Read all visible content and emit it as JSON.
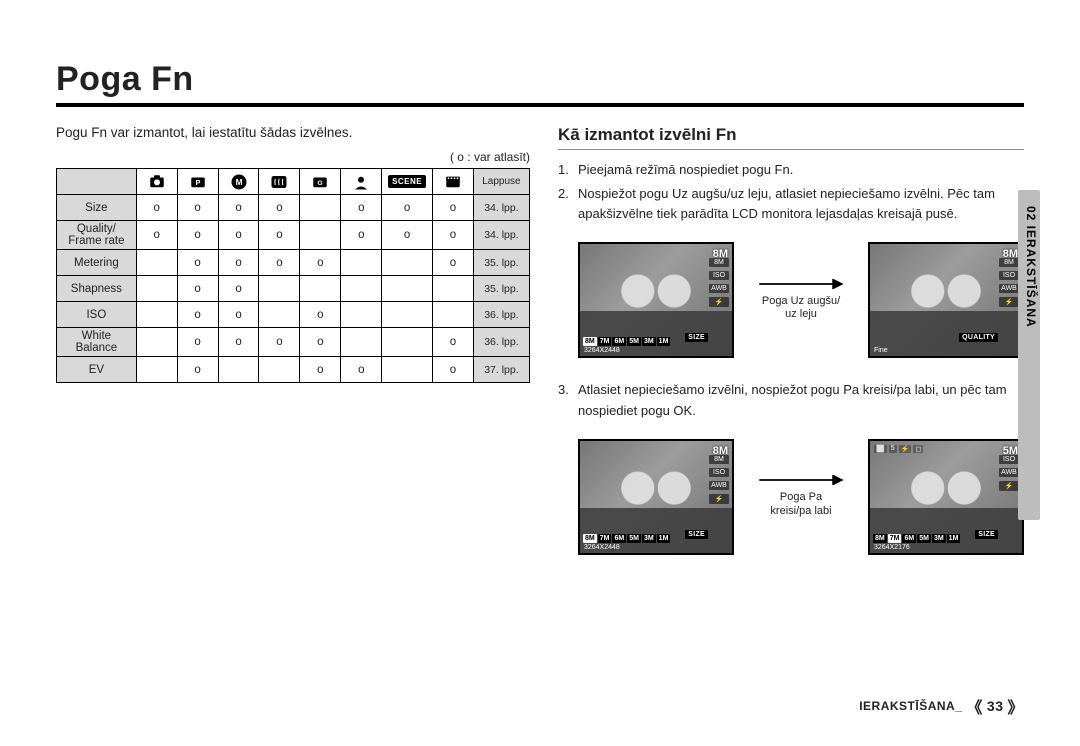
{
  "title": "Poga Fn",
  "left": {
    "intro": "Pogu Fn var izmantot, lai iestatītu šādas izvēlnes.",
    "legend": "( o : var atlasīt)",
    "head_last": "Lappuse",
    "scene_label": "SCENE",
    "rows": [
      {
        "label": "Size",
        "c": [
          "o",
          "o",
          "o",
          "o",
          "",
          "o",
          "o",
          "o"
        ],
        "page": "34. lpp."
      },
      {
        "label": "Quality/\nFrame rate",
        "c": [
          "o",
          "o",
          "o",
          "o",
          "",
          "o",
          "o",
          "o"
        ],
        "page": "34. lpp."
      },
      {
        "label": "Metering",
        "c": [
          "",
          "o",
          "o",
          "o",
          "o",
          "",
          "",
          "o"
        ],
        "page": "35. lpp."
      },
      {
        "label": "Shapness",
        "c": [
          "",
          "o",
          "o",
          "",
          "",
          "",
          "",
          ""
        ],
        "page": "35. lpp."
      },
      {
        "label": "ISO",
        "c": [
          "",
          "o",
          "o",
          "",
          "o",
          "",
          "",
          ""
        ],
        "page": "36. lpp."
      },
      {
        "label": "White\nBalance",
        "c": [
          "",
          "o",
          "o",
          "o",
          "o",
          "",
          "",
          "o"
        ],
        "page": "36. lpp."
      },
      {
        "label": "EV",
        "c": [
          "",
          "o",
          "",
          "",
          "o",
          "o",
          "",
          "o"
        ],
        "page": "37. lpp."
      }
    ]
  },
  "right": {
    "subhead": "Kā izmantot izvēlni Fn",
    "steps": [
      "Pieejamā režīmā nospiediet pogu Fn.",
      "Nospiežot pogu Uz augšu/uz leju, atlasiet nepieciešamo izvēlni. Pēc tam apakšizvēlne tiek parādīta LCD monitora lejasdaļas kreisajā pusē.",
      "Atlasiet nepieciešamo izvēlni, nospiežot pogu Pa kreisi/pa labi, un pēc tam nospiediet pogu OK."
    ],
    "arrow1": "Poga Uz augšu/\nuz leju",
    "arrow2": "Poga Pa\nkreisi/pa labi",
    "shot1": {
      "badge": "SIZE",
      "sub": "3264X2448",
      "sizes": [
        "8M",
        "7M",
        "6M",
        "5M",
        "3M",
        "1M"
      ],
      "right": [
        "8M",
        "ISO",
        "AWB",
        "⚡"
      ],
      "corner": "8M"
    },
    "shot2": {
      "badge": "QUALITY",
      "sub": "Fine",
      "right": [
        "8M",
        "ISO",
        "AWB",
        "⚡"
      ],
      "corner": "8M"
    },
    "shot3": {
      "badge": "SIZE",
      "sub": "3264X2448",
      "sizes": [
        "8M",
        "7M",
        "6M",
        "5M",
        "3M",
        "1M"
      ],
      "right": [
        "8M",
        "ISO",
        "AWB",
        "⚡"
      ],
      "corner": "8M"
    },
    "shot4": {
      "badge": "SIZE",
      "sub": "3264X2176",
      "sizes": [
        "8M",
        "7M",
        "6M",
        "5M",
        "3M",
        "1M"
      ],
      "right": [
        "ISO",
        "AWB",
        "⚡"
      ],
      "corner": "5M",
      "top": [
        "⬜",
        "5",
        "⚡",
        "◻"
      ]
    }
  },
  "sideTab": "02 IERAKSTĪŠANA",
  "footer": {
    "label": "IERAKSTĪŠANA_",
    "page": "33"
  }
}
